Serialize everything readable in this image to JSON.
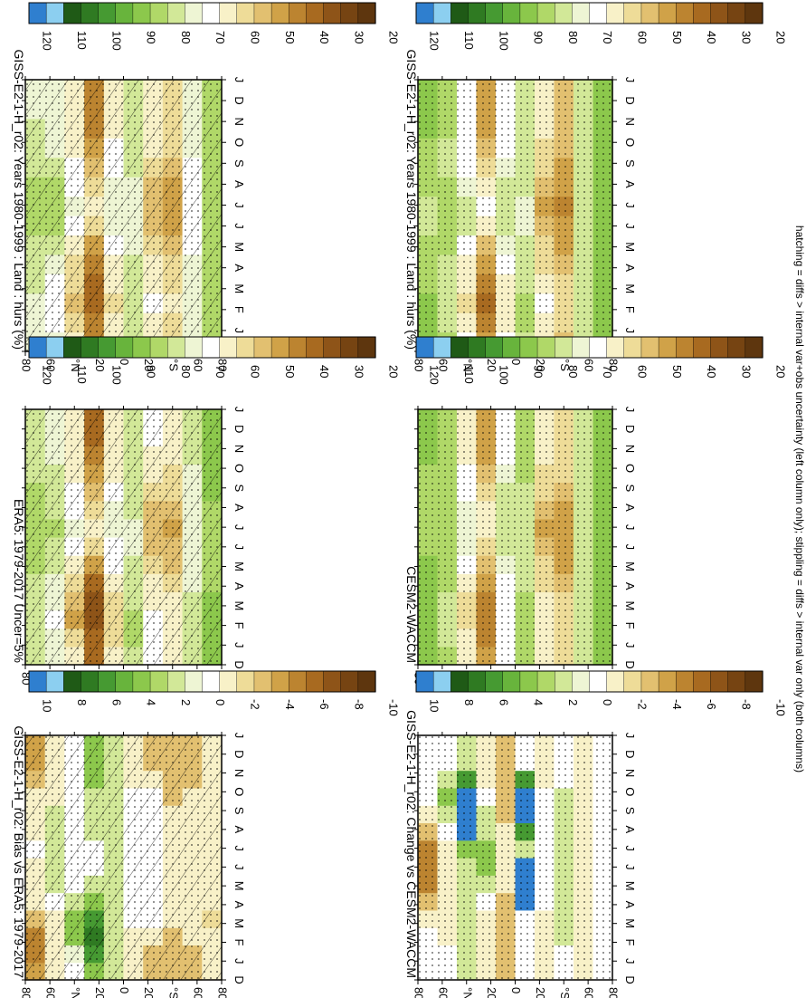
{
  "figure": {
    "footnote": "hatching = diffs > internal var+obs uncertainty (left column only); stippling = diffs > internal var only (both columns)"
  },
  "colorbars": {
    "absolute": {
      "ticks": [
        "120",
        "110",
        "100",
        "90",
        "80",
        "70",
        "60",
        "50",
        "40",
        "30",
        "20"
      ],
      "colors": [
        "#2f7fcf",
        "#8ccff0",
        "#1f5a16",
        "#2f7a22",
        "#469a32",
        "#68b43c",
        "#8cc84c",
        "#b0d868",
        "#d2e898",
        "#eef5d4",
        "#ffffff",
        "#f8f1c8",
        "#eedc98",
        "#e2c070",
        "#d0a248",
        "#bc8430",
        "#a86a20",
        "#8e5418",
        "#764412",
        "#5e360e"
      ]
    },
    "difference": {
      "ticks": [
        "10",
        "8",
        "6",
        "4",
        "2",
        "0",
        "-2",
        "-4",
        "-6",
        "-8",
        "-10"
      ],
      "colors": [
        "#2f7fcf",
        "#8ccff0",
        "#1f5a16",
        "#2f7a22",
        "#469a32",
        "#68b43c",
        "#8cc84c",
        "#b0d868",
        "#d2e898",
        "#eef5d4",
        "#ffffff",
        "#f8f1c8",
        "#eedc98",
        "#e2c070",
        "#d0a248",
        "#bc8430",
        "#a86a20",
        "#8e5418",
        "#764412",
        "#5e360e"
      ]
    }
  },
  "chart_data": [
    {
      "type": "heatmap",
      "panel": "top-left",
      "title": "GISS-E2-1-H_r02: Years 1980-1999 : Land : hurs (%)",
      "x": [
        "D",
        "J",
        "F",
        "M",
        "A",
        "M",
        "J",
        "J",
        "A",
        "S",
        "O",
        "N",
        "D",
        "J"
      ],
      "y": [
        "80",
        "60",
        "°N",
        "20",
        "0",
        "20",
        "°S",
        "60",
        "80"
      ],
      "colorbar": "absolute",
      "overlay": [
        "hatching",
        "stippling"
      ],
      "values": [
        [
          75,
          74,
          74,
          76,
          78,
          80,
          82,
          83,
          82,
          80,
          78,
          76,
          75,
          75
        ],
        [
          72,
          70,
          68,
          70,
          74,
          78,
          82,
          84,
          82,
          78,
          74,
          72,
          72,
          72
        ],
        [
          60,
          55,
          52,
          54,
          58,
          64,
          70,
          72,
          70,
          66,
          62,
          60,
          60,
          60
        ],
        [
          40,
          38,
          35,
          36,
          40,
          46,
          54,
          60,
          58,
          52,
          46,
          42,
          40,
          40
        ],
        [
          62,
          60,
          58,
          60,
          62,
          68,
          72,
          74,
          74,
          70,
          66,
          62,
          62,
          62
        ],
        [
          78,
          80,
          80,
          78,
          76,
          74,
          72,
          72,
          74,
          76,
          78,
          78,
          78,
          78
        ],
        [
          62,
          64,
          66,
          64,
          60,
          56,
          52,
          50,
          52,
          56,
          60,
          62,
          62,
          62
        ],
        [
          56,
          58,
          60,
          58,
          54,
          50,
          48,
          46,
          48,
          52,
          54,
          56,
          56,
          56
        ],
        [
          72,
          72,
          74,
          74,
          72,
          70,
          70,
          70,
          70,
          70,
          72,
          72,
          72,
          72
        ],
        [
          86,
          86,
          86,
          85,
          84,
          84,
          84,
          84,
          84,
          85,
          86,
          86,
          86,
          86
        ]
      ]
    },
    {
      "type": "heatmap",
      "panel": "top-right",
      "title": "GISS-E2-1-H_r02: Years 1980-1999 : Land : hurs (%)",
      "x": [
        "D",
        "J",
        "F",
        "M",
        "A",
        "M",
        "J",
        "J",
        "A",
        "S",
        "O",
        "N",
        "D",
        "J"
      ],
      "y": [
        "80",
        "60",
        "°N",
        "20",
        "0",
        "20",
        "°S",
        "60",
        "80"
      ],
      "colorbar": "absolute",
      "overlay": [
        "stippling"
      ],
      "values": [
        [
          88,
          88,
          87,
          86,
          84,
          82,
          80,
          80,
          82,
          84,
          86,
          88,
          88,
          88
        ],
        [
          82,
          80,
          78,
          78,
          80,
          82,
          84,
          84,
          82,
          80,
          80,
          82,
          82,
          82
        ],
        [
          66,
          62,
          58,
          60,
          64,
          70,
          76,
          78,
          74,
          70,
          66,
          66,
          66,
          66
        ],
        [
          44,
          40,
          36,
          38,
          44,
          52,
          62,
          66,
          62,
          56,
          50,
          46,
          44,
          44
        ],
        [
          66,
          64,
          62,
          64,
          66,
          72,
          76,
          78,
          76,
          72,
          68,
          66,
          66,
          66
        ],
        [
          80,
          82,
          82,
          80,
          78,
          76,
          74,
          74,
          76,
          78,
          80,
          80,
          80,
          80
        ],
        [
          62,
          64,
          66,
          62,
          58,
          54,
          50,
          48,
          50,
          54,
          58,
          62,
          62,
          62
        ],
        [
          52,
          54,
          56,
          54,
          50,
          46,
          44,
          42,
          44,
          48,
          52,
          52,
          52,
          52
        ],
        [
          78,
          78,
          80,
          80,
          78,
          76,
          76,
          76,
          76,
          76,
          78,
          78,
          78,
          78
        ],
        [
          90,
          90,
          90,
          89,
          88,
          88,
          88,
          88,
          88,
          89,
          90,
          90,
          90,
          90
        ]
      ]
    },
    {
      "type": "heatmap",
      "panel": "middle-left",
      "title": "ERA5: 1979-2017 Uncer=5%",
      "x": [
        "D",
        "J",
        "F",
        "M",
        "A",
        "M",
        "J",
        "J",
        "A",
        "S",
        "O",
        "N",
        "D",
        "J"
      ],
      "y": [
        "80",
        "60",
        "°N",
        "20",
        "0",
        "20",
        "°S",
        "60",
        "80"
      ],
      "colorbar": "absolute",
      "overlay": [
        "hatching",
        "stippling"
      ],
      "values": [
        [
          80,
          80,
          80,
          80,
          80,
          82,
          84,
          84,
          84,
          82,
          80,
          80,
          80,
          80
        ],
        [
          74,
          72,
          70,
          72,
          74,
          78,
          80,
          82,
          80,
          78,
          76,
          74,
          74,
          74
        ],
        [
          60,
          54,
          48,
          50,
          56,
          64,
          70,
          72,
          70,
          66,
          62,
          60,
          60,
          60
        ],
        [
          36,
          32,
          28,
          30,
          36,
          44,
          54,
          60,
          56,
          50,
          44,
          38,
          36,
          36
        ],
        [
          60,
          58,
          56,
          58,
          60,
          66,
          70,
          72,
          72,
          68,
          64,
          60,
          60,
          60
        ],
        [
          80,
          82,
          82,
          80,
          78,
          76,
          74,
          74,
          76,
          78,
          80,
          80,
          80,
          80
        ],
        [
          66,
          68,
          68,
          64,
          60,
          56,
          52,
          50,
          52,
          56,
          60,
          64,
          66,
          66
        ],
        [
          60,
          62,
          64,
          60,
          56,
          52,
          50,
          48,
          50,
          54,
          58,
          60,
          60,
          60
        ],
        [
          76,
          76,
          76,
          76,
          74,
          72,
          72,
          72,
          72,
          72,
          74,
          76,
          76,
          76
        ],
        [
          88,
          88,
          88,
          87,
          86,
          86,
          86,
          86,
          86,
          87,
          88,
          88,
          88,
          88
        ]
      ]
    },
    {
      "type": "heatmap",
      "panel": "middle-right",
      "title": "CESM2-WACCM",
      "x": [
        "D",
        "J",
        "F",
        "M",
        "A",
        "M",
        "J",
        "J",
        "A",
        "S",
        "O",
        "N",
        "D",
        "J"
      ],
      "y": [
        "80",
        "60",
        "°N",
        "20",
        "0",
        "20",
        "°S",
        "60",
        "80"
      ],
      "colorbar": "absolute",
      "overlay": [
        "stippling"
      ],
      "values": [
        [
          88,
          88,
          88,
          88,
          88,
          88,
          86,
          86,
          86,
          86,
          86,
          88,
          88,
          88
        ],
        [
          82,
          80,
          80,
          80,
          82,
          84,
          84,
          84,
          82,
          82,
          82,
          82,
          82,
          82
        ],
        [
          64,
          60,
          56,
          58,
          62,
          68,
          72,
          74,
          72,
          68,
          66,
          64,
          64,
          64
        ],
        [
          46,
          42,
          38,
          40,
          44,
          50,
          58,
          62,
          60,
          54,
          50,
          48,
          46,
          46
        ],
        [
          70,
          68,
          66,
          68,
          70,
          74,
          78,
          80,
          78,
          76,
          72,
          70,
          70,
          70
        ],
        [
          82,
          84,
          84,
          82,
          80,
          78,
          76,
          76,
          78,
          80,
          82,
          82,
          82,
          82
        ],
        [
          62,
          64,
          64,
          62,
          58,
          54,
          50,
          48,
          50,
          54,
          58,
          62,
          62,
          62
        ],
        [
          54,
          56,
          58,
          56,
          52,
          48,
          46,
          44,
          46,
          50,
          54,
          54,
          54,
          54
        ],
        [
          80,
          80,
          80,
          80,
          78,
          78,
          78,
          78,
          78,
          78,
          80,
          80,
          80,
          80
        ],
        [
          90,
          90,
          90,
          90,
          90,
          90,
          90,
          90,
          90,
          90,
          90,
          90,
          90,
          90
        ]
      ]
    },
    {
      "type": "heatmap",
      "panel": "bottom-left",
      "title": "GISS-E2-1-H_r02: Bias vs ERA5: 1979-2017",
      "x": [
        "D",
        "J",
        "F",
        "M",
        "A",
        "M",
        "J",
        "J",
        "A",
        "S",
        "O",
        "N",
        "D",
        "J"
      ],
      "y": [
        "80",
        "60",
        "°N",
        "20",
        "0",
        "20",
        "°S",
        "60",
        "80"
      ],
      "colorbar": "difference",
      "overlay": [
        "hatching",
        "stippling"
      ],
      "values": [
        [
          -5,
          -6,
          -6,
          -4,
          -2,
          -2,
          -2,
          -1,
          -2,
          -2,
          -2,
          -4,
          -5,
          -5
        ],
        [
          -2,
          -2,
          -2,
          -2,
          0,
          2,
          2,
          2,
          2,
          2,
          -2,
          -2,
          -2,
          -2
        ],
        [
          0,
          1,
          4,
          4,
          2,
          0,
          0,
          0,
          0,
          0,
          0,
          0,
          0,
          0
        ],
        [
          4,
          6,
          7,
          6,
          4,
          2,
          0,
          0,
          2,
          2,
          2,
          4,
          4,
          4
        ],
        [
          2,
          2,
          2,
          2,
          2,
          2,
          2,
          2,
          2,
          2,
          2,
          2,
          2,
          2
        ],
        [
          -2,
          -2,
          -2,
          0,
          0,
          0,
          0,
          0,
          0,
          0,
          0,
          -2,
          -2,
          -2
        ],
        [
          -4,
          -4,
          -2,
          0,
          0,
          0,
          0,
          0,
          0,
          0,
          0,
          -2,
          -4,
          -4
        ],
        [
          -4,
          -4,
          -4,
          -2,
          -2,
          -2,
          -2,
          -2,
          -2,
          -2,
          -4,
          -4,
          -4,
          -4
        ],
        [
          -4,
          -4,
          -2,
          -2,
          -2,
          -2,
          -2,
          -2,
          -2,
          -2,
          -2,
          -4,
          -4,
          -4
        ],
        [
          -2,
          -2,
          -2,
          -3,
          -2,
          -2,
          -2,
          -2,
          -2,
          -2,
          -2,
          -2,
          -2,
          -2
        ]
      ]
    },
    {
      "type": "heatmap",
      "panel": "bottom-right",
      "title": "GISS-E2-1-H_r02: Change vs CESM2-WACCM",
      "x": [
        "D",
        "J",
        "F",
        "M",
        "A",
        "M",
        "J",
        "J",
        "A",
        "S",
        "O",
        "N",
        "D",
        "J"
      ],
      "y": [
        "80",
        "60",
        "°N",
        "20",
        "0",
        "20",
        "°S",
        "60",
        "80"
      ],
      "colorbar": "difference",
      "overlay": [
        "stippling"
      ],
      "values": [
        [
          0,
          0,
          -1,
          -2,
          -4,
          -6,
          -6,
          -6,
          -4,
          -2,
          -1,
          0,
          0,
          0
        ],
        [
          0,
          0,
          -2,
          -2,
          -2,
          -2,
          -2,
          -2,
          0,
          2,
          4,
          2,
          0,
          0
        ],
        [
          2,
          2,
          2,
          2,
          2,
          2,
          2,
          4,
          12,
          12,
          12,
          6,
          2,
          2
        ],
        [
          -2,
          -2,
          -2,
          -2,
          0,
          2,
          4,
          4,
          2,
          2,
          0,
          -2,
          -2,
          -2
        ],
        [
          -4,
          -4,
          -4,
          -4,
          -4,
          -2,
          -2,
          -2,
          -2,
          -4,
          -4,
          -4,
          -4,
          -4
        ],
        [
          0,
          0,
          0,
          0,
          12,
          12,
          12,
          2,
          6,
          12,
          12,
          6,
          0,
          0
        ],
        [
          -2,
          -2,
          -2,
          -2,
          0,
          0,
          0,
          0,
          0,
          0,
          0,
          -2,
          -2,
          -2
        ],
        [
          0,
          0,
          2,
          2,
          2,
          2,
          2,
          2,
          2,
          2,
          2,
          0,
          0,
          0
        ],
        [
          -2,
          -2,
          -2,
          -2,
          -2,
          -2,
          -2,
          -2,
          -2,
          -2,
          -2,
          -2,
          -2,
          -2
        ],
        [
          0,
          0,
          0,
          0,
          0,
          0,
          0,
          0,
          0,
          0,
          0,
          0,
          0,
          0
        ]
      ]
    }
  ]
}
